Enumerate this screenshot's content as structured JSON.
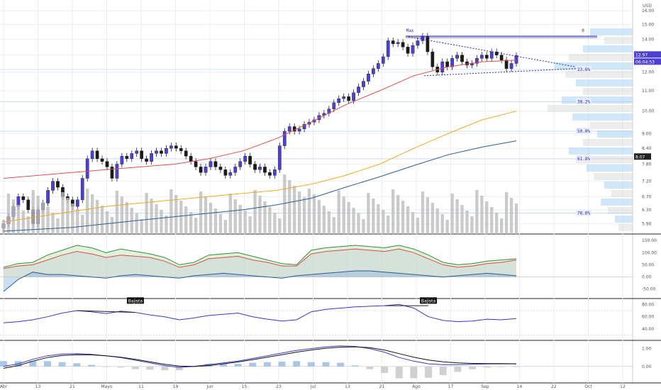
{
  "colors": {
    "up": "#4c3fd1",
    "down": "#1a1a1a",
    "ma_fast": "#e05050",
    "ma_mid": "#f5a623",
    "ma_slow": "#2e5d8f",
    "volume": "#bdbdbd",
    "fib": "#2a2aa0",
    "volprofile": "#a9d3f5",
    "grid": "#eeeeee"
  },
  "chart_data": [
    {
      "type": "candlestick",
      "panel": "price",
      "currency": "USD",
      "x_labels": [
        "Abr",
        "13",
        "21",
        "Mayo",
        "11",
        "19",
        "Jun",
        "15",
        "23",
        "Jul",
        "13",
        "21",
        "Ago",
        "17",
        "Sep",
        "14",
        "22",
        "Oct",
        "12"
      ],
      "y_ticks": [
        5.9,
        6.3,
        6.7,
        7.2,
        7.8,
        8.4,
        9.0,
        10.0,
        11.0,
        12.0,
        13.0,
        14.0,
        15.0,
        16.0
      ],
      "ylim": [
        5.7,
        16.6
      ],
      "current_price": "12.97",
      "countdown": "06:04:53",
      "level_tag": "8.07",
      "max_label": "Max",
      "zero_label": "0",
      "fib_levels": [
        {
          "label": "23.6%",
          "value": 12.15
        },
        {
          "label": "38.2%",
          "value": 10.45
        },
        {
          "label": "50.0%",
          "value": 9.1
        },
        {
          "label": "61.8%",
          "value": 8.0
        },
        {
          "label": "78.6%",
          "value": 6.2
        }
      ],
      "closes": [
        5.9,
        6.1,
        6.4,
        6.7,
        6.6,
        6.3,
        5.9,
        6.3,
        6.5,
        6.9,
        7.2,
        7.0,
        6.7,
        6.6,
        6.4,
        6.6,
        7.3,
        8.0,
        8.3,
        8.0,
        7.9,
        7.7,
        7.3,
        7.8,
        8.1,
        8.0,
        8.2,
        8.3,
        8.0,
        7.9,
        8.2,
        8.3,
        8.2,
        8.4,
        8.5,
        8.4,
        8.3,
        8.1,
        7.9,
        7.7,
        7.5,
        7.7,
        7.9,
        7.7,
        7.6,
        7.4,
        7.5,
        7.7,
        7.9,
        8.1,
        7.8,
        7.6,
        7.7,
        7.5,
        7.4,
        7.6,
        8.5,
        9.1,
        9.3,
        9.1,
        9.2,
        9.4,
        9.5,
        9.6,
        9.8,
        9.9,
        10.1,
        10.4,
        10.6,
        10.7,
        10.5,
        10.9,
        11.2,
        11.5,
        11.9,
        12.2,
        12.5,
        12.9,
        13.9,
        13.7,
        13.8,
        13.5,
        13.1,
        13.6,
        13.9,
        14.2,
        13.2,
        12.3,
        12.0,
        12.6,
        12.3,
        12.8,
        13.0,
        12.6,
        12.4,
        12.5,
        12.8,
        13.0,
        12.8,
        13.2,
        13.0,
        12.7,
        12.2,
        12.5,
        12.97
      ],
      "series": [
        {
          "name": "",
          "values": [
            7.3,
            7.4,
            7.5,
            7.6,
            7.7,
            7.8,
            8.0,
            8.3,
            8.8,
            9.5,
            10.3,
            11.0,
            11.8,
            12.3,
            12.6,
            12.7
          ]
        },
        {
          "name": "",
          "values": [
            5.95,
            6.1,
            6.25,
            6.4,
            6.5,
            6.6,
            6.7,
            6.8,
            6.9,
            7.1,
            7.4,
            7.8,
            8.4,
            9.0,
            9.6,
            10.0
          ]
        },
        {
          "name": "",
          "values": [
            5.7,
            5.75,
            5.8,
            5.9,
            6.0,
            6.1,
            6.2,
            6.3,
            6.45,
            6.65,
            7.0,
            7.35,
            7.75,
            8.15,
            8.45,
            8.7
          ]
        }
      ]
    },
    {
      "type": "area",
      "panel": "oscillator-1",
      "y_ticks": [
        "150.00",
        "100.00",
        "50.00",
        "0.00",
        "-50.00"
      ],
      "ylim": [
        -80,
        165
      ],
      "series": [
        {
          "name": "",
          "values": [
            40,
            55,
            60,
            90,
            110,
            130,
            120,
            100,
            115,
            105,
            95,
            80,
            50,
            60,
            90,
            95,
            100,
            85,
            70,
            55,
            50,
            110,
            120,
            125,
            130,
            125,
            120,
            130,
            115,
            90,
            60,
            50,
            55,
            65,
            70,
            75
          ]
        },
        {
          "name": "",
          "values": [
            35,
            45,
            50,
            70,
            90,
            105,
            95,
            80,
            90,
            85,
            80,
            65,
            40,
            50,
            75,
            80,
            85,
            70,
            60,
            45,
            45,
            95,
            105,
            110,
            115,
            110,
            105,
            115,
            100,
            75,
            50,
            40,
            45,
            55,
            60,
            70
          ]
        },
        {
          "name": "",
          "values": [
            -60,
            -10,
            20,
            10,
            10,
            5,
            0,
            -5,
            5,
            10,
            5,
            0,
            -5,
            5,
            10,
            15,
            10,
            5,
            0,
            -5,
            5,
            10,
            15,
            20,
            25,
            25,
            20,
            15,
            10,
            5,
            0,
            5,
            10,
            15,
            10,
            5
          ]
        }
      ]
    },
    {
      "type": "line",
      "panel": "rsi",
      "y_ticks": [
        "80.00",
        "60.00",
        "40.00"
      ],
      "ylim": [
        25,
        85
      ],
      "divergence_label": "Bajista",
      "series": [
        {
          "name": "",
          "values": [
            50,
            52,
            55,
            60,
            66,
            70,
            68,
            65,
            69,
            67,
            63,
            60,
            55,
            58,
            62,
            64,
            66,
            60,
            56,
            53,
            55,
            68,
            72,
            74,
            76,
            77,
            78,
            80,
            74,
            60,
            54,
            52,
            53,
            56,
            55,
            57
          ]
        }
      ]
    },
    {
      "type": "line",
      "panel": "macd",
      "y_ticks": [
        "1.00",
        "0.00"
      ],
      "ylim": [
        -0.6,
        1.3
      ],
      "series": [
        {
          "name": "",
          "values": [
            0.0,
            0.15,
            0.4,
            0.6,
            0.7,
            0.72,
            0.68,
            0.6,
            0.5,
            0.35,
            0.2,
            0.05,
            -0.05,
            0.0,
            0.1,
            0.2,
            0.3,
            0.45,
            0.6,
            0.75,
            0.9,
            1.0,
            1.1,
            1.15,
            1.12,
            1.0,
            0.8,
            0.5,
            0.3,
            0.15,
            0.1,
            0.1,
            0.12,
            0.14,
            0.15,
            0.15
          ]
        },
        {
          "name": "",
          "values": [
            -0.1,
            0.05,
            0.3,
            0.5,
            0.62,
            0.66,
            0.65,
            0.6,
            0.52,
            0.4,
            0.26,
            0.12,
            0.02,
            0.0,
            0.05,
            0.15,
            0.25,
            0.38,
            0.52,
            0.66,
            0.8,
            0.92,
            1.02,
            1.08,
            1.1,
            1.05,
            0.92,
            0.72,
            0.52,
            0.36,
            0.26,
            0.2,
            0.17,
            0.16,
            0.16,
            0.15
          ]
        }
      ]
    }
  ]
}
